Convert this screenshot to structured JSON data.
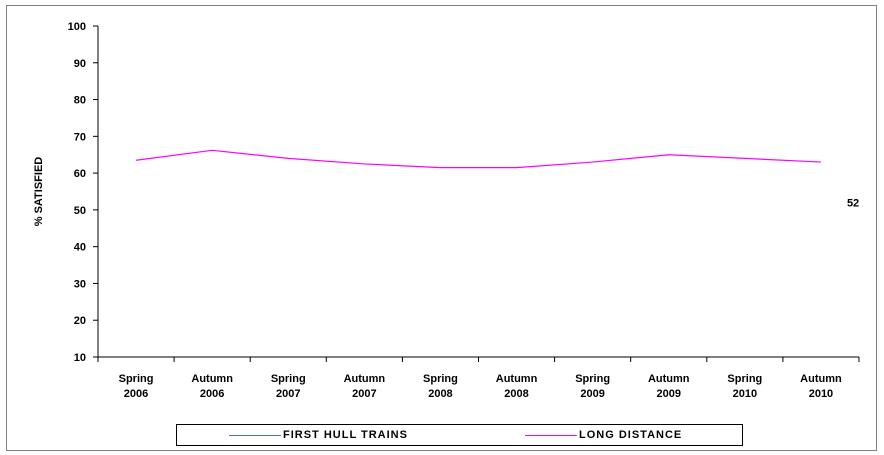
{
  "chart_data": {
    "type": "line",
    "ylabel": "% SATISFIED",
    "ylim": [
      10,
      100
    ],
    "yticks": [
      10,
      20,
      30,
      40,
      50,
      60,
      70,
      80,
      90,
      100
    ],
    "categories": [
      [
        "Spring",
        "2006"
      ],
      [
        "Autumn",
        "2006"
      ],
      [
        "Spring",
        "2007"
      ],
      [
        "Autumn",
        "2007"
      ],
      [
        "Spring",
        "2008"
      ],
      [
        "Autumn",
        "2008"
      ],
      [
        "Spring",
        "2009"
      ],
      [
        "Autumn",
        "2009"
      ],
      [
        "Spring",
        "2010"
      ],
      [
        "Autumn",
        "2010"
      ]
    ],
    "series": [
      {
        "name": "FIRST HULL TRAINS",
        "color": "#4472C4",
        "values": [
          null,
          null,
          null,
          null,
          null,
          null,
          null,
          null,
          null,
          null
        ],
        "end_label": "52"
      },
      {
        "name": "LONG DISTANCE",
        "color": "#FF00FF",
        "values": [
          63.5,
          66.2,
          64,
          62.5,
          61.5,
          61.5,
          63,
          65,
          64,
          63
        ]
      }
    ],
    "grid": false,
    "legend_position": "bottom"
  }
}
